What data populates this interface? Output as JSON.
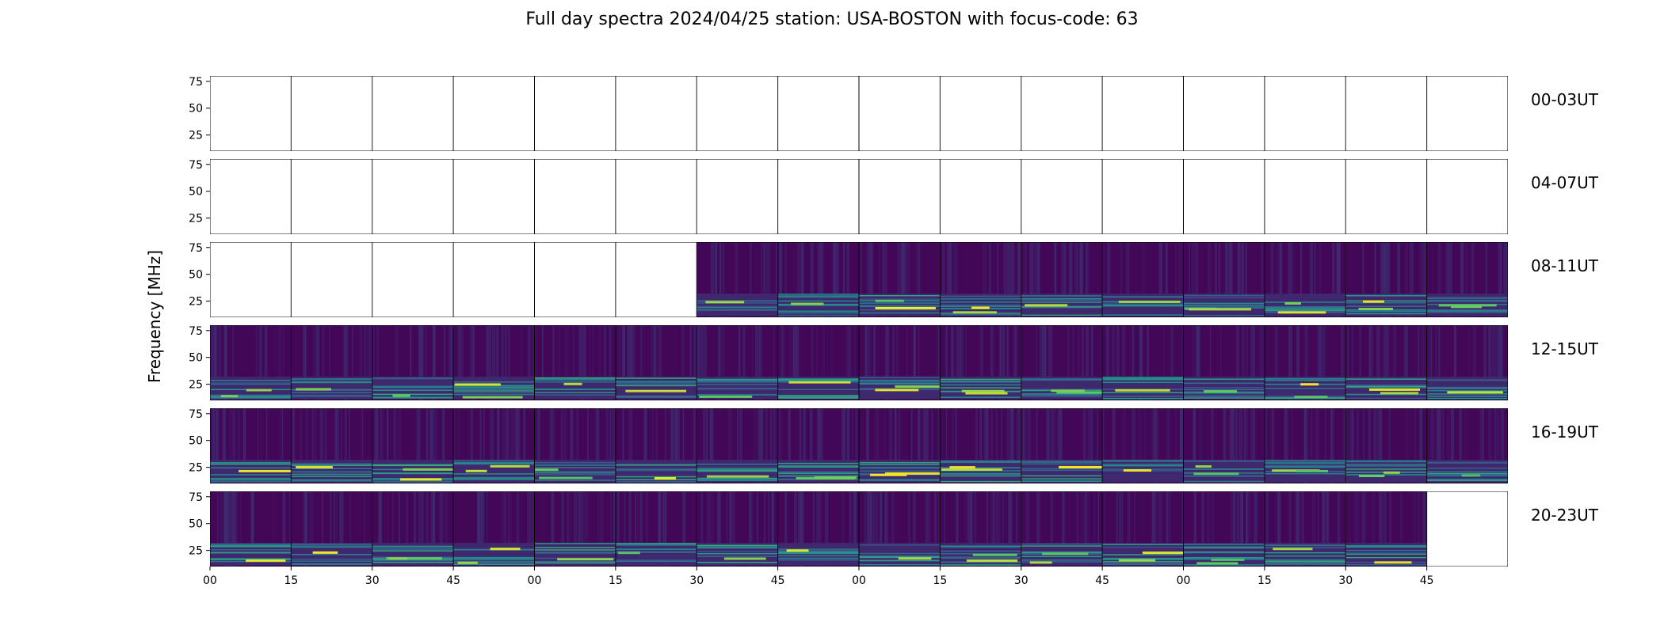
{
  "chart_data": {
    "type": "heatmap",
    "title": "Full day spectra 2024/04/25 station: USA-BOSTON with focus-code: 63",
    "ylabel": "Frequency [MHz]",
    "xlabel": "",
    "ylim": [
      10,
      80
    ],
    "y_ticks": [
      "75",
      "50",
      "25"
    ],
    "x_ticks": [
      "00",
      "15",
      "30",
      "45",
      "00",
      "15",
      "30",
      "45",
      "00",
      "15",
      "30",
      "45",
      "00",
      "15",
      "30",
      "45"
    ],
    "colormap": [
      "#440154",
      "#3b528b",
      "#21918c",
      "#5ec962",
      "#fde725"
    ],
    "panels_per_row": 16,
    "rows": [
      {
        "label": "00-03UT",
        "filled": [
          0,
          0,
          0,
          0,
          0,
          0,
          0,
          0,
          0,
          0,
          0,
          0,
          0,
          0,
          0,
          0
        ]
      },
      {
        "label": "04-07UT",
        "filled": [
          0,
          0,
          0,
          0,
          0,
          0,
          0,
          0,
          0,
          0,
          0,
          0,
          0,
          0,
          0,
          0
        ]
      },
      {
        "label": "08-11UT",
        "filled": [
          0,
          0,
          0,
          0,
          0,
          0,
          1,
          1,
          1,
          1,
          1,
          1,
          1,
          1,
          1,
          1
        ]
      },
      {
        "label": "12-15UT",
        "filled": [
          1,
          1,
          1,
          1,
          1,
          1,
          1,
          1,
          1,
          1,
          1,
          1,
          1,
          1,
          1,
          1
        ]
      },
      {
        "label": "16-19UT",
        "filled": [
          1,
          1,
          1,
          1,
          1,
          1,
          1,
          1,
          1,
          1,
          1,
          1,
          1,
          1,
          1,
          1
        ]
      },
      {
        "label": "20-23UT",
        "filled": [
          1,
          1,
          1,
          1,
          1,
          1,
          1,
          1,
          1,
          1,
          1,
          1,
          1,
          1,
          1,
          0
        ]
      }
    ]
  }
}
